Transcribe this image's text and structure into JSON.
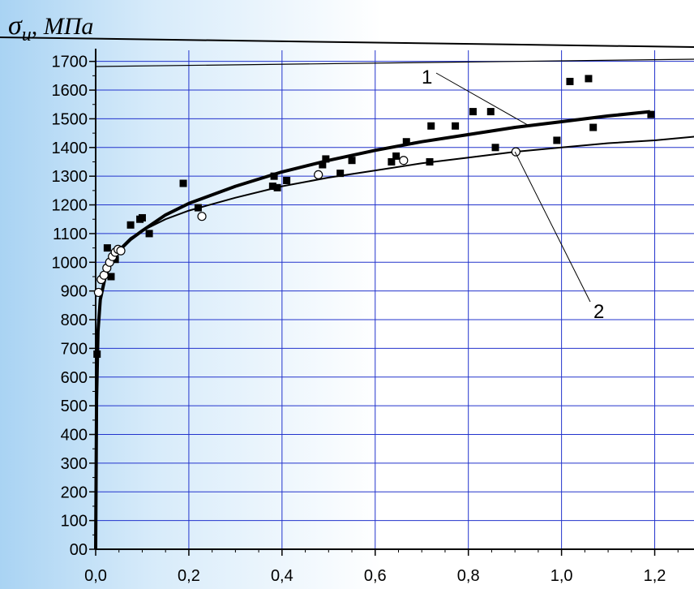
{
  "chart_data": {
    "type": "scatter",
    "ylabel": "σ",
    "ylabel_sub": "u",
    "ylabel_unit": ", МПа",
    "xlabel": "",
    "xlim": [
      0,
      1.3
    ],
    "ylim": [
      0,
      1750
    ],
    "x_ticks": [
      0.0,
      0.2,
      0.4,
      0.6,
      0.8,
      1.0,
      1.2
    ],
    "x_tick_labels": [
      "0,0",
      "0,2",
      "0,4",
      "0,6",
      "0,8",
      "1,0",
      "1,2"
    ],
    "y_ticks": [
      0,
      100,
      200,
      300,
      400,
      500,
      600,
      700,
      800,
      900,
      1000,
      1100,
      1200,
      1300,
      1400,
      1500,
      1600,
      1700
    ],
    "y_tick_labels": [
      "00",
      "100",
      "200",
      "300",
      "400",
      "500",
      "600",
      "700",
      "800",
      "900",
      "1000",
      "1100",
      "1200",
      "1300",
      "1400",
      "1500",
      "1600",
      "1700"
    ],
    "grid": true,
    "series": [
      {
        "marker": "filled-square",
        "x": [
          0.003,
          0.025,
          0.033,
          0.042,
          0.075,
          0.095,
          0.1,
          0.115,
          0.188,
          0.22,
          0.38,
          0.383,
          0.39,
          0.41,
          0.487,
          0.494,
          0.525,
          0.55,
          0.635,
          0.645,
          0.667,
          0.717,
          0.72,
          0.772,
          0.81,
          0.848,
          0.858,
          0.99,
          1.018,
          1.058,
          1.068,
          1.192
        ],
        "y": [
          680,
          1050,
          950,
          1010,
          1130,
          1150,
          1155,
          1100,
          1275,
          1190,
          1265,
          1300,
          1260,
          1285,
          1340,
          1360,
          1310,
          1355,
          1350,
          1370,
          1420,
          1350,
          1475,
          1475,
          1525,
          1525,
          1400,
          1425,
          1630,
          1640,
          1470,
          1515
        ]
      },
      {
        "marker": "open-circle",
        "x": [
          0.006,
          0.012,
          0.018,
          0.024,
          0.03,
          0.036,
          0.042,
          0.048,
          0.054,
          0.228,
          0.478,
          0.661,
          0.902
        ],
        "y": [
          895,
          940,
          955,
          980,
          1000,
          1020,
          1035,
          1045,
          1040,
          1160,
          1305,
          1355,
          1385
        ]
      }
    ],
    "curves": [
      {
        "label": "1",
        "x": [
          0.0,
          0.002,
          0.005,
          0.01,
          0.02,
          0.03,
          0.05,
          0.075,
          0.1,
          0.15,
          0.2,
          0.3,
          0.4,
          0.5,
          0.6,
          0.7,
          0.8,
          0.9,
          1.0,
          1.1,
          1.19
        ],
        "y": [
          0,
          520,
          760,
          870,
          945,
          990,
          1040,
          1080,
          1110,
          1165,
          1205,
          1265,
          1315,
          1355,
          1390,
          1420,
          1445,
          1470,
          1490,
          1510,
          1525
        ]
      },
      {
        "label": "2",
        "x": [
          0.0,
          0.003,
          0.006,
          0.01,
          0.02,
          0.03,
          0.05,
          0.075,
          0.1,
          0.15,
          0.2,
          0.3,
          0.4,
          0.5,
          0.6,
          0.7,
          0.8,
          0.9,
          1.0,
          1.1,
          1.2,
          1.3
        ],
        "y": [
          0,
          580,
          800,
          870,
          945,
          990,
          1045,
          1085,
          1110,
          1150,
          1180,
          1225,
          1265,
          1295,
          1320,
          1345,
          1365,
          1385,
          1400,
          1415,
          1425,
          1440
        ]
      }
    ],
    "annotations": [
      {
        "text": "1",
        "target_curve": 0,
        "target_x": 0.93
      },
      {
        "text": "2",
        "target_curve": 1,
        "target_x": 0.9
      }
    ]
  }
}
